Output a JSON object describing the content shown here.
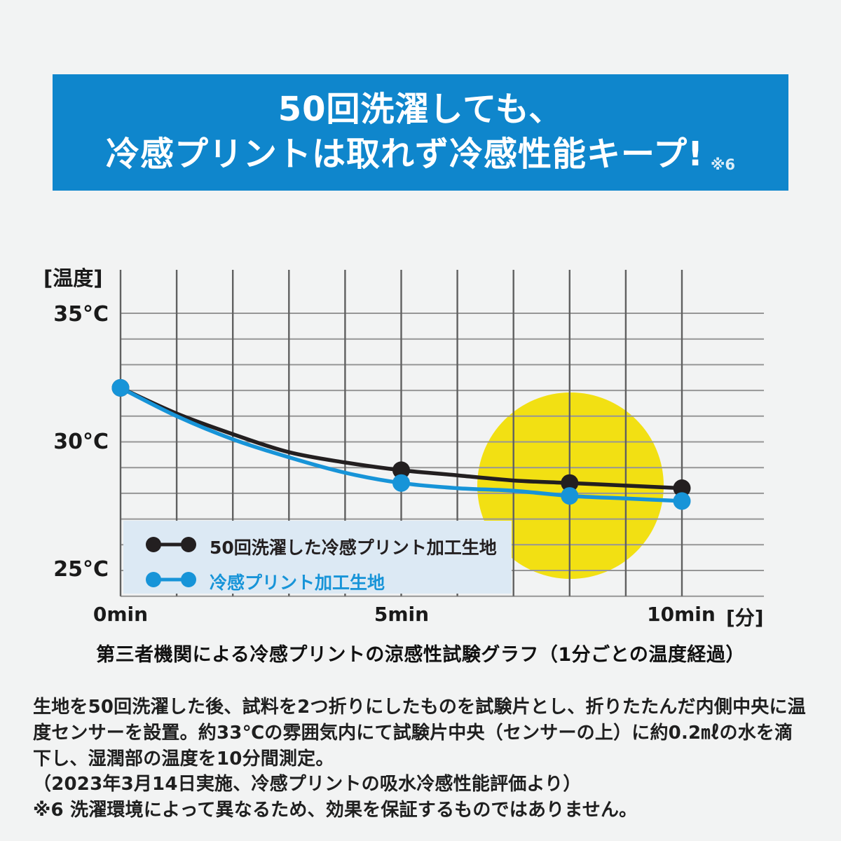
{
  "banner": {
    "line1": "50回洗濯しても、",
    "line2": "冷感プリントは取れず冷感性能キープ!",
    "note_ref": "※6",
    "bg_color": "#0f86cc",
    "text_color": "#ffffff"
  },
  "chart_data": {
    "type": "line",
    "title": "第三者機関による冷感プリントの涼感性試験グラフ（1分ごとの温度経過）",
    "ylabel": "[温度]",
    "xlabel_unit": "[分]",
    "y_ticks": [
      "35°C",
      "30°C",
      "25°C"
    ],
    "y_tick_values": [
      35,
      30,
      25
    ],
    "x_ticks": [
      "0min",
      "5min",
      "10min"
    ],
    "x_tick_values": [
      0,
      5,
      10
    ],
    "x_minutes": [
      0,
      1,
      2,
      3,
      4,
      5,
      6,
      7,
      8,
      9,
      10
    ],
    "xlim": [
      0,
      10
    ],
    "ylim": [
      24,
      36.7
    ],
    "grid": {
      "x_step_minutes": 1,
      "y_step_degrees": 1,
      "vertical_color": "#606060",
      "horizontal_color": "#969696"
    },
    "series": [
      {
        "name": "50回洗濯した冷感プリント加工生地",
        "color": "#231f20",
        "values": [
          32.1,
          31.1,
          30.3,
          29.6,
          29.2,
          28.9,
          28.7,
          28.5,
          28.4,
          28.3,
          28.2
        ],
        "marker_minutes": [
          0,
          5,
          8,
          10
        ]
      },
      {
        "name": "冷感プリント加工生地",
        "color": "#1794d8",
        "values": [
          32.1,
          31.0,
          30.1,
          29.4,
          28.8,
          28.4,
          28.2,
          28.1,
          27.9,
          27.8,
          27.7
        ],
        "marker_minutes": [
          0,
          5,
          8,
          10
        ]
      }
    ],
    "highlight": {
      "shape": "circle",
      "color": "#f2e013",
      "center_minute": 8,
      "center_temp": 28.3
    },
    "legend_bg": "#dce9f4"
  },
  "footnotes": {
    "methodology": "生地を50回洗濯した後、試料を2つ折りにしたものを試験片とし、折りたたんだ内側中央に温度センサーを設置。約33℃の雰囲気内にて試験片中央（センサーの上）に約0.2㎖の水を滴下し、湿潤部の温度を10分間測定。",
    "test_date": "（2023年3月14日実施、冷感プリントの吸水冷感性能評価より）",
    "disclaimer": "※6 洗濯環境によって異なるため、効果を保証するものではありません。"
  }
}
